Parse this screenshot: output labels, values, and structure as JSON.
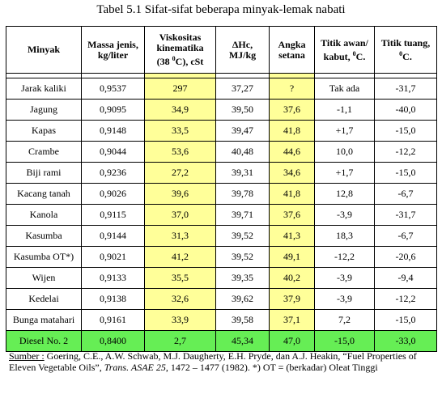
{
  "title": "Tabel 5.1 Sifat-sifat beberapa minyak-lemak  nabati",
  "headers": [
    "Minyak",
    "Massa jenis, kg/liter",
    "Viskositas kinematika (38 0C), cSt",
    "ΔHc, MJ/kg",
    "Angka setana",
    "Titik awan/ kabut, 0C.",
    "Titik tuang, 0C."
  ],
  "rows": [
    [
      "Jarak kaliki",
      "0,9537",
      "297",
      "37,27",
      "?",
      "Tak ada",
      "-31,7"
    ],
    [
      "Jagung",
      "0,9095",
      "34,9",
      "39,50",
      "37,6",
      "-1,1",
      "-40,0"
    ],
    [
      "Kapas",
      "0,9148",
      "33,5",
      "39,47",
      "41,8",
      "+1,7",
      "-15,0"
    ],
    [
      "Crambe",
      "0,9044",
      "53,6",
      "40,48",
      "44,6",
      "10,0",
      "-12,2"
    ],
    [
      "Biji rami",
      "0,9236",
      "27,2",
      "39,31",
      "34,6",
      "+1,7",
      "-15,0"
    ],
    [
      "Kacang tanah",
      "0,9026",
      "39,6",
      "39,78",
      "41,8",
      "12,8",
      "-6,7"
    ],
    [
      "Kanola",
      "0,9115",
      "37,0",
      "39,71",
      "37,6",
      "-3,9",
      "-31,7"
    ],
    [
      "Kasumba",
      "0,9144",
      "31,3",
      "39,52",
      "41,3",
      "18,3",
      "-6,7"
    ],
    [
      "Kasumba OT*)",
      "0,9021",
      "41,2",
      "39,52",
      "49,1",
      "-12,2",
      "-20,6"
    ],
    [
      "Wijen",
      "0,9133",
      "35,5",
      "39,35",
      "40,2",
      "-3,9",
      "-9,4"
    ],
    [
      "Kedelai",
      "0,9138",
      "32,6",
      "39,62",
      "37,9",
      "-3,9",
      "-12,2"
    ],
    [
      "Bunga matahari",
      "0,9161",
      "33,9",
      "39,58",
      "37,1",
      "7,2",
      "-15,0"
    ]
  ],
  "diesel": [
    "Diesel No. 2",
    "0,8400",
    "2,7",
    "45,34",
    "47,0",
    "-15,0",
    "-33,0"
  ],
  "note": {
    "label": "Sumber :",
    "text1": " Goering, C.E., A.W. Schwab, M.J. Daugherty, E.H. Pryde, dan A.J. Heakin, “Fuel Properties of Eleven Vegetable Oils”, ",
    "journal": "Trans. ASAE 25",
    "text2": ", 1472 – 1477 (1982).  *) OT = (berkadar) Oleat Tinggi"
  },
  "colors": {
    "highlight": "#ffff99",
    "diesel_row": "#66ee55"
  }
}
